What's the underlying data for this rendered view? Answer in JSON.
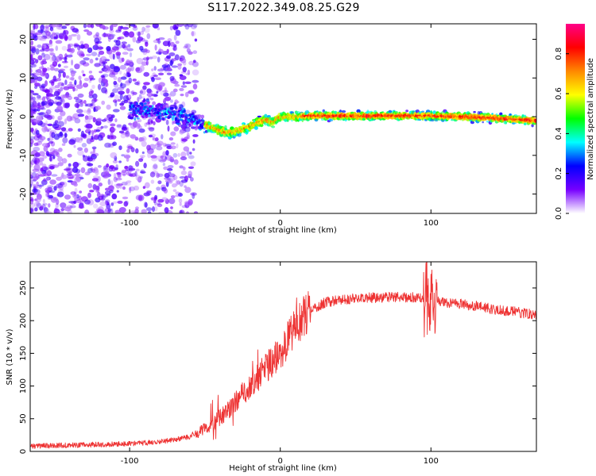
{
  "figure": {
    "title": "S117.2022.349.08.25.G29"
  },
  "colors": {
    "snr_line": "#ee3333",
    "axis": "#000000"
  },
  "chart_data": [
    {
      "type": "heatmap",
      "title": "",
      "xlabel": "Height of straight line (km)",
      "ylabel": "Frequency (Hz)",
      "xlim": [
        -166,
        170
      ],
      "ylim": [
        -25,
        24
      ],
      "xticks": [
        -100,
        0,
        100
      ],
      "yticks": [
        -20,
        -10,
        0,
        10,
        20
      ],
      "grid": false,
      "colormap": [
        "#ffffff",
        "#7700ff",
        "#0000ff",
        "#00ffff",
        "#00ff00",
        "#ffff00",
        "#ff8800",
        "#ff0000",
        "#ff0088"
      ],
      "ridge_frequency": {
        "x": [
          -95,
          -80,
          -70,
          -60,
          -55,
          -50,
          -45,
          -40,
          -35,
          -30,
          -25,
          -20,
          -15,
          -10,
          -5,
          0,
          10,
          20,
          40,
          60,
          80,
          100,
          120,
          140,
          160,
          170
        ],
        "y": [
          2,
          1.5,
          0.5,
          -0.5,
          -1.5,
          -2.2,
          -2.8,
          -3.6,
          -4.2,
          -4.0,
          -3.2,
          -2.5,
          -1.5,
          -0.8,
          -1.5,
          0,
          0,
          0.2,
          0.2,
          0.2,
          0.2,
          0.2,
          0.0,
          -0.3,
          -0.8,
          -1.0
        ]
      },
      "colorbar": {
        "label": "Normalized spectral amplitude",
        "range": [
          0,
          0.95
        ],
        "ticks": [
          0.0,
          0.2,
          0.4,
          0.6,
          0.8
        ],
        "tick_labels": [
          "0.0",
          "0.2",
          "0.4",
          "0.6",
          "0.8"
        ]
      }
    },
    {
      "type": "line",
      "title": "",
      "xlabel": "Height of straight line (km)",
      "ylabel": "SNR (10 * v/v)",
      "xlim": [
        -166,
        170
      ],
      "ylim": [
        0,
        290
      ],
      "xticks": [
        -100,
        0,
        100
      ],
      "yticks": [
        0,
        50,
        100,
        150,
        200,
        250
      ],
      "grid": false,
      "series": [
        {
          "color": "#ee3333",
          "x": [
            -166,
            -150,
            -130,
            -110,
            -90,
            -80,
            -70,
            -60,
            -55,
            -50,
            -45,
            -40,
            -35,
            -30,
            -25,
            -20,
            -15,
            -10,
            -5,
            0,
            5,
            10,
            15,
            20,
            25,
            30,
            40,
            50,
            60,
            70,
            80,
            90,
            95,
            100,
            105,
            110,
            120,
            130,
            140,
            150,
            160,
            170
          ],
          "y": [
            8,
            9,
            10,
            11,
            13,
            15,
            18,
            22,
            28,
            35,
            42,
            52,
            62,
            75,
            88,
            100,
            112,
            125,
            138,
            150,
            170,
            190,
            205,
            215,
            222,
            228,
            232,
            234,
            235,
            236,
            236,
            235,
            233,
            232,
            230,
            228,
            226,
            222,
            218,
            215,
            212,
            210
          ]
        }
      ]
    }
  ]
}
